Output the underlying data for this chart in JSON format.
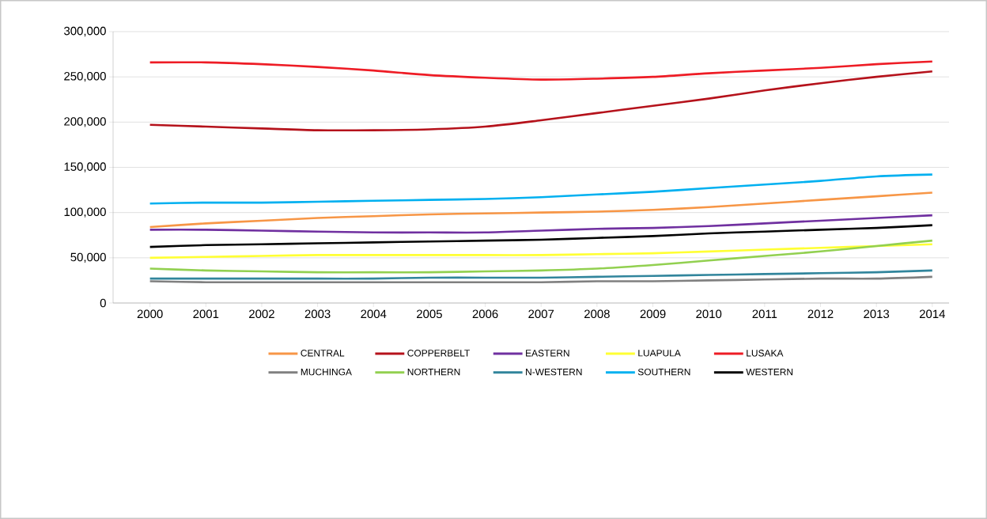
{
  "chart_data": {
    "type": "line",
    "categories": [
      "2000",
      "2001",
      "2002",
      "2003",
      "2004",
      "2005",
      "2006",
      "2007",
      "2008",
      "2009",
      "2010",
      "2011",
      "2012",
      "2013",
      "2014"
    ],
    "series": [
      {
        "name": "CENTRAL",
        "color": "#f79646",
        "values": [
          84000,
          88000,
          91000,
          94000,
          96000,
          98000,
          99000,
          100000,
          101000,
          103000,
          106000,
          110000,
          114000,
          118000,
          122000
        ]
      },
      {
        "name": "COPPERBELT",
        "color": "#b5121b",
        "values": [
          197000,
          195000,
          193000,
          191000,
          191000,
          192000,
          195000,
          202000,
          210000,
          218000,
          226000,
          235000,
          243000,
          250000,
          256000
        ]
      },
      {
        "name": "EASTERN",
        "color": "#7030a0",
        "values": [
          81000,
          81000,
          80000,
          79000,
          78000,
          78000,
          78000,
          80000,
          82000,
          83000,
          85000,
          88000,
          91000,
          94000,
          97000
        ]
      },
      {
        "name": "LUAPULA",
        "color": "#ffff33",
        "values": [
          50000,
          51000,
          52000,
          53000,
          53000,
          53000,
          53000,
          53000,
          54000,
          55000,
          57000,
          59000,
          61000,
          63000,
          65000
        ]
      },
      {
        "name": "LUSAKA",
        "color": "#ee1c25",
        "values": [
          266000,
          266000,
          264000,
          261000,
          257000,
          252000,
          249000,
          247000,
          248000,
          250000,
          254000,
          257000,
          260000,
          264000,
          267000
        ]
      },
      {
        "name": "MUCHINGA",
        "color": "#808080",
        "values": [
          24000,
          23000,
          23000,
          23000,
          23000,
          23000,
          23000,
          23000,
          24000,
          24000,
          25000,
          26000,
          27000,
          27000,
          29000
        ]
      },
      {
        "name": "NORTHERN",
        "color": "#92d050",
        "values": [
          38000,
          36000,
          35000,
          34000,
          34000,
          34000,
          35000,
          36000,
          38000,
          42000,
          47000,
          52000,
          57000,
          63000,
          69000
        ]
      },
      {
        "name": "N-WESTERN",
        "color": "#31859c",
        "values": [
          27000,
          27000,
          27000,
          27000,
          27000,
          28000,
          28000,
          28000,
          29000,
          30000,
          31000,
          32000,
          33000,
          34000,
          36000
        ]
      },
      {
        "name": "SOUTHERN",
        "color": "#00b0f0",
        "values": [
          110000,
          111000,
          111000,
          112000,
          113000,
          114000,
          115000,
          117000,
          120000,
          123000,
          127000,
          131000,
          135000,
          140000,
          142000
        ]
      },
      {
        "name": "WESTERN",
        "color": "#000000",
        "values": [
          62000,
          64000,
          65000,
          66000,
          67000,
          68000,
          69000,
          70000,
          72000,
          74000,
          77000,
          79000,
          81000,
          83000,
          86000
        ]
      }
    ],
    "ylim": [
      0,
      300000
    ],
    "yticks": [
      {
        "value": 0,
        "label": "0"
      },
      {
        "value": 50000,
        "label": "50,000"
      },
      {
        "value": 100000,
        "label": "100,000"
      },
      {
        "value": 150000,
        "label": "150,000"
      },
      {
        "value": 200000,
        "label": "200,000"
      },
      {
        "value": 250000,
        "label": "250,000"
      },
      {
        "value": 300000,
        "label": "300,000"
      }
    ],
    "grid": "y",
    "legend": "bottom",
    "marker": "none",
    "line_style": "solid"
  }
}
